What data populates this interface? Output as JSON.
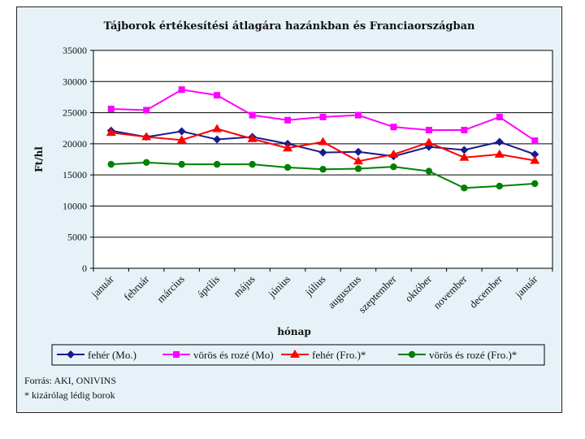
{
  "chart_data": {
    "type": "line",
    "title": "Tájborok értékesítési átlagára hazánkban és Franciaországban",
    "xlabel": "hónap",
    "ylabel": "Ft/hl",
    "ylim": [
      0,
      35000
    ],
    "yticks": [
      0,
      5000,
      10000,
      15000,
      20000,
      25000,
      30000,
      35000
    ],
    "grid": true,
    "legend": "bottom",
    "categories": [
      "január",
      "február",
      "március",
      "április",
      "május",
      "június",
      "július",
      "augusztus",
      "szeptember",
      "október",
      "november",
      "december",
      "január"
    ],
    "series": [
      {
        "name": "fehér (Mo.)",
        "color": "#1a1a8c",
        "marker": "diamond",
        "values": [
          22100,
          21100,
          22000,
          20700,
          21100,
          20000,
          18600,
          18700,
          18000,
          19500,
          19000,
          20300,
          18300
        ]
      },
      {
        "name": "vörös és rozé (Mo)",
        "color": "#ff00ff",
        "marker": "square",
        "values": [
          25600,
          25400,
          28700,
          27800,
          24600,
          23800,
          24300,
          24600,
          22700,
          22200,
          22200,
          24300,
          20500
        ]
      },
      {
        "name": "fehér (Fro.)*",
        "color": "#ff0000",
        "marker": "triangle",
        "values": [
          21800,
          21100,
          20600,
          22400,
          20800,
          19300,
          20300,
          17200,
          18300,
          20200,
          17800,
          18300,
          17300
        ]
      },
      {
        "name": "vörös és rozé (Fro.)*",
        "color": "#008000",
        "marker": "circle",
        "values": [
          16700,
          17000,
          16700,
          16700,
          16700,
          16200,
          15900,
          16000,
          16300,
          15600,
          12900,
          13200,
          13600
        ]
      }
    ]
  },
  "footnotes": {
    "source": "Forrás: AKI, ONIVINS",
    "note": "* kizárólag lédig borok"
  }
}
